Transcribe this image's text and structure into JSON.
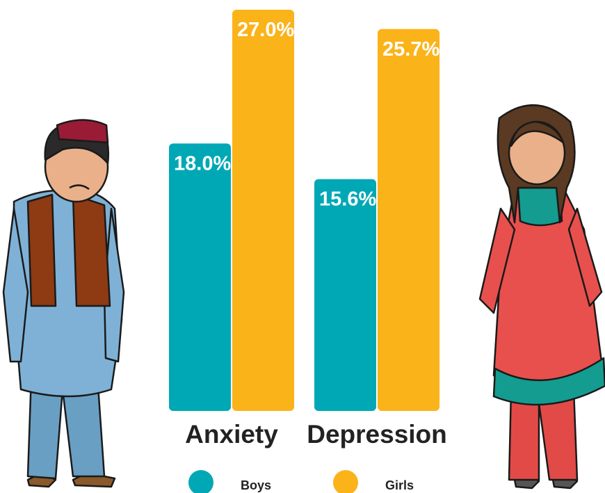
{
  "chart_data": {
    "type": "bar",
    "categories": [
      "Anxiety",
      "Depression"
    ],
    "series": [
      {
        "name": "Boys",
        "color": "#00a8b5",
        "values": [
          18.0,
          15.6
        ],
        "value_labels": [
          "18.0%",
          "15.6%"
        ]
      },
      {
        "name": "Girls",
        "color": "#fbb31a",
        "values": [
          27.0,
          25.7
        ],
        "value_labels": [
          "27.0%",
          "25.7%"
        ]
      }
    ]
  }
}
